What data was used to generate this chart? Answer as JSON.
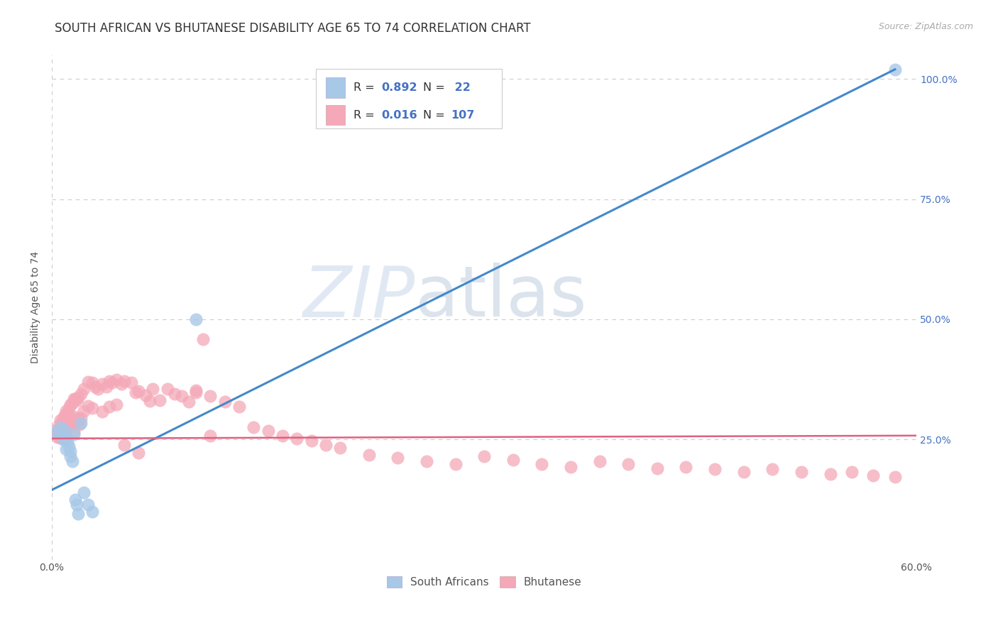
{
  "title": "SOUTH AFRICAN VS BHUTANESE DISABILITY AGE 65 TO 74 CORRELATION CHART",
  "source": "Source: ZipAtlas.com",
  "ylabel": "Disability Age 65 to 74",
  "x_min": 0.0,
  "x_max": 0.6,
  "y_min": 0.0,
  "y_max": 1.05,
  "x_ticks": [
    0.0,
    0.1,
    0.2,
    0.3,
    0.4,
    0.5,
    0.6
  ],
  "x_tick_labels": [
    "0.0%",
    "",
    "",
    "",
    "",
    "",
    "60.0%"
  ],
  "y_ticks": [
    0.0,
    0.25,
    0.5,
    0.75,
    1.0
  ],
  "y_tick_labels_right": [
    "",
    "25.0%",
    "50.0%",
    "75.0%",
    "100.0%"
  ],
  "blue_color": "#a8c8e8",
  "pink_color": "#f4a8b8",
  "blue_line_color": "#4488cc",
  "pink_line_color": "#e06080",
  "legend_blue_label": "South Africans",
  "legend_pink_label": "Bhutanese",
  "R_blue": 0.892,
  "N_blue": 22,
  "R_pink": 0.016,
  "N_pink": 107,
  "R_N_color": "#4472c4",
  "watermark_zip": "ZIP",
  "watermark_atlas": "atlas",
  "background_color": "#ffffff",
  "grid_color": "#cccccc",
  "title_fontsize": 12,
  "axis_label_fontsize": 10,
  "tick_fontsize": 10,
  "blue_line_x0": 0.0,
  "blue_line_y0": 0.145,
  "blue_line_x1": 0.585,
  "blue_line_y1": 1.02,
  "pink_line_x0": 0.0,
  "pink_line_y0": 0.252,
  "pink_line_x1": 0.6,
  "pink_line_y1": 0.258,
  "blue_scatter_x": [
    0.003,
    0.006,
    0.007,
    0.008,
    0.009,
    0.01,
    0.01,
    0.011,
    0.012,
    0.013,
    0.013,
    0.014,
    0.015,
    0.016,
    0.017,
    0.018,
    0.02,
    0.022,
    0.025,
    0.028,
    0.585,
    0.1
  ],
  "blue_scatter_y": [
    0.265,
    0.275,
    0.26,
    0.25,
    0.27,
    0.255,
    0.23,
    0.245,
    0.235,
    0.225,
    0.215,
    0.205,
    0.26,
    0.125,
    0.115,
    0.095,
    0.285,
    0.14,
    0.115,
    0.1,
    1.02,
    0.5
  ],
  "pink_scatter_x": [
    0.003,
    0.004,
    0.004,
    0.005,
    0.005,
    0.005,
    0.006,
    0.006,
    0.006,
    0.007,
    0.007,
    0.007,
    0.008,
    0.008,
    0.008,
    0.009,
    0.009,
    0.009,
    0.01,
    0.01,
    0.01,
    0.01,
    0.011,
    0.011,
    0.012,
    0.012,
    0.013,
    0.013,
    0.014,
    0.014,
    0.015,
    0.015,
    0.015,
    0.016,
    0.016,
    0.017,
    0.017,
    0.018,
    0.018,
    0.019,
    0.02,
    0.02,
    0.022,
    0.022,
    0.025,
    0.025,
    0.028,
    0.028,
    0.03,
    0.032,
    0.035,
    0.035,
    0.038,
    0.04,
    0.04,
    0.042,
    0.045,
    0.045,
    0.048,
    0.05,
    0.055,
    0.058,
    0.06,
    0.065,
    0.068,
    0.07,
    0.075,
    0.08,
    0.085,
    0.09,
    0.095,
    0.1,
    0.105,
    0.11,
    0.12,
    0.13,
    0.14,
    0.15,
    0.16,
    0.17,
    0.18,
    0.19,
    0.2,
    0.22,
    0.24,
    0.26,
    0.28,
    0.3,
    0.32,
    0.34,
    0.36,
    0.38,
    0.4,
    0.42,
    0.44,
    0.46,
    0.48,
    0.5,
    0.52,
    0.54,
    0.555,
    0.57,
    0.585,
    0.05,
    0.06,
    0.1,
    0.11
  ],
  "pink_scatter_y": [
    0.27,
    0.265,
    0.255,
    0.28,
    0.268,
    0.255,
    0.29,
    0.272,
    0.258,
    0.285,
    0.268,
    0.252,
    0.295,
    0.278,
    0.26,
    0.3,
    0.282,
    0.262,
    0.31,
    0.285,
    0.268,
    0.25,
    0.305,
    0.272,
    0.315,
    0.28,
    0.322,
    0.285,
    0.325,
    0.288,
    0.335,
    0.298,
    0.265,
    0.335,
    0.29,
    0.332,
    0.285,
    0.338,
    0.295,
    0.282,
    0.345,
    0.295,
    0.355,
    0.31,
    0.37,
    0.32,
    0.368,
    0.315,
    0.36,
    0.355,
    0.365,
    0.308,
    0.36,
    0.372,
    0.318,
    0.368,
    0.375,
    0.322,
    0.365,
    0.372,
    0.368,
    0.348,
    0.35,
    0.342,
    0.33,
    0.355,
    0.332,
    0.355,
    0.345,
    0.34,
    0.328,
    0.348,
    0.458,
    0.34,
    0.328,
    0.318,
    0.275,
    0.268,
    0.258,
    0.252,
    0.248,
    0.238,
    0.232,
    0.218,
    0.212,
    0.205,
    0.198,
    0.215,
    0.208,
    0.198,
    0.192,
    0.205,
    0.198,
    0.19,
    0.192,
    0.188,
    0.182,
    0.188,
    0.182,
    0.178,
    0.182,
    0.175,
    0.172,
    0.238,
    0.222,
    0.352,
    0.258
  ]
}
